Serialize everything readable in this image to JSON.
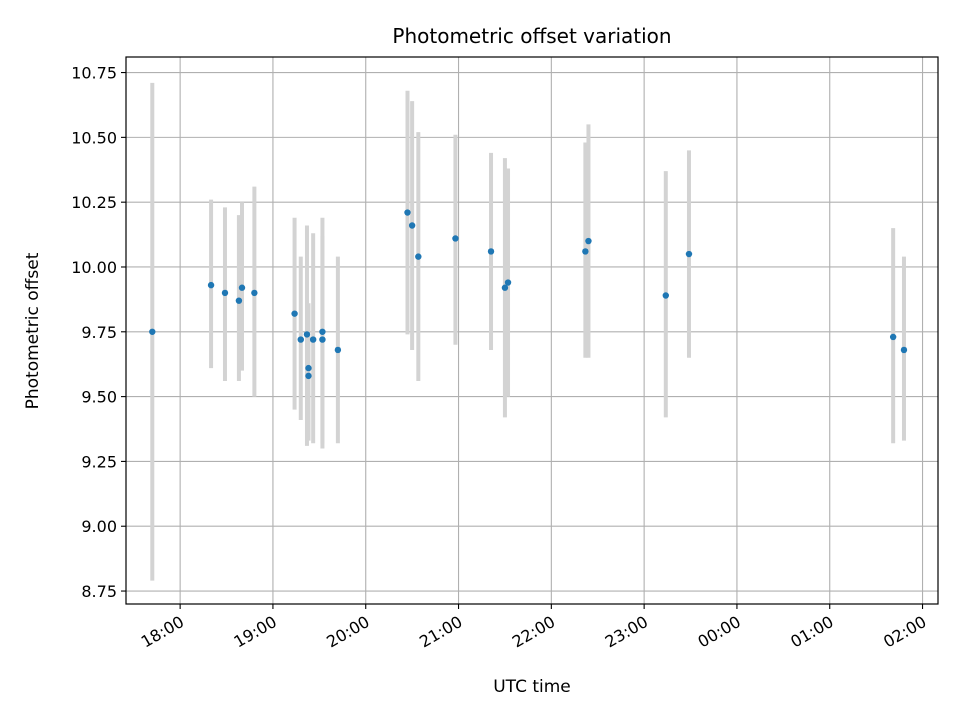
{
  "chart_data": {
    "type": "scatter",
    "title": "Photometric offset variation",
    "xlabel": "UTC time",
    "ylabel": "Photometric offset",
    "x_axis_kind": "time",
    "xlim": [
      "17:25",
      "02:10"
    ],
    "ylim": [
      8.7,
      10.81
    ],
    "grid": true,
    "x_ticks": [
      "18:00",
      "19:00",
      "20:00",
      "21:00",
      "22:00",
      "23:00",
      "00:00",
      "01:00",
      "02:00"
    ],
    "y_ticks": [
      "8.75",
      "9.00",
      "9.25",
      "9.50",
      "9.75",
      "10.00",
      "10.25",
      "10.50",
      "10.75"
    ],
    "colors": {
      "point": "#1f77b4",
      "errorbar": "#d3d3d3",
      "grid": "#b0b0b0"
    },
    "series": [
      {
        "points": [
          {
            "x": "17:42",
            "y": 9.75,
            "y_err_low": 8.79,
            "y_err_high": 10.71
          },
          {
            "x": "18:20",
            "y": 9.93,
            "y_err_low": 9.61,
            "y_err_high": 10.26
          },
          {
            "x": "18:29",
            "y": 9.9,
            "y_err_low": 9.56,
            "y_err_high": 10.23
          },
          {
            "x": "18:38",
            "y": 9.87,
            "y_err_low": 9.56,
            "y_err_high": 10.2
          },
          {
            "x": "18:40",
            "y": 9.92,
            "y_err_low": 9.6,
            "y_err_high": 10.25
          },
          {
            "x": "18:48",
            "y": 9.9,
            "y_err_low": 9.5,
            "y_err_high": 10.31
          },
          {
            "x": "19:14",
            "y": 9.82,
            "y_err_low": 9.45,
            "y_err_high": 10.19
          },
          {
            "x": "19:18",
            "y": 9.72,
            "y_err_low": 9.41,
            "y_err_high": 10.04
          },
          {
            "x": "19:22",
            "y": 9.74,
            "y_err_low": 9.31,
            "y_err_high": 10.16
          },
          {
            "x": "19:23",
            "y": 9.61,
            "y_err_low": 9.37,
            "y_err_high": 9.86
          },
          {
            "x": "19:23",
            "y": 9.58,
            "y_err_low": 9.33,
            "y_err_high": 9.82
          },
          {
            "x": "19:26",
            "y": 9.72,
            "y_err_low": 9.32,
            "y_err_high": 10.13
          },
          {
            "x": "19:32",
            "y": 9.75,
            "y_err_low": 9.3,
            "y_err_high": 10.19
          },
          {
            "x": "19:32",
            "y": 9.72,
            "y_err_low": 9.32,
            "y_err_high": 10.12
          },
          {
            "x": "19:42",
            "y": 9.68,
            "y_err_low": 9.32,
            "y_err_high": 10.04
          },
          {
            "x": "20:27",
            "y": 10.21,
            "y_err_low": 9.74,
            "y_err_high": 10.68
          },
          {
            "x": "20:30",
            "y": 10.16,
            "y_err_low": 9.68,
            "y_err_high": 10.64
          },
          {
            "x": "20:34",
            "y": 10.04,
            "y_err_low": 9.56,
            "y_err_high": 10.52
          },
          {
            "x": "20:58",
            "y": 10.11,
            "y_err_low": 9.7,
            "y_err_high": 10.51
          },
          {
            "x": "21:21",
            "y": 10.06,
            "y_err_low": 9.68,
            "y_err_high": 10.44
          },
          {
            "x": "21:30",
            "y": 9.92,
            "y_err_low": 9.42,
            "y_err_high": 10.42
          },
          {
            "x": "21:32",
            "y": 9.94,
            "y_err_low": 9.5,
            "y_err_high": 10.38
          },
          {
            "x": "22:22",
            "y": 10.06,
            "y_err_low": 9.65,
            "y_err_high": 10.48
          },
          {
            "x": "22:24",
            "y": 10.1,
            "y_err_low": 9.65,
            "y_err_high": 10.55
          },
          {
            "x": "23:14",
            "y": 9.89,
            "y_err_low": 9.42,
            "y_err_high": 10.37
          },
          {
            "x": "23:29",
            "y": 10.05,
            "y_err_low": 9.65,
            "y_err_high": 10.45
          },
          {
            "x": "01:41",
            "y": 9.73,
            "y_err_low": 9.32,
            "y_err_high": 10.15
          },
          {
            "x": "01:48",
            "y": 9.68,
            "y_err_low": 9.33,
            "y_err_high": 10.04
          }
        ]
      }
    ]
  }
}
